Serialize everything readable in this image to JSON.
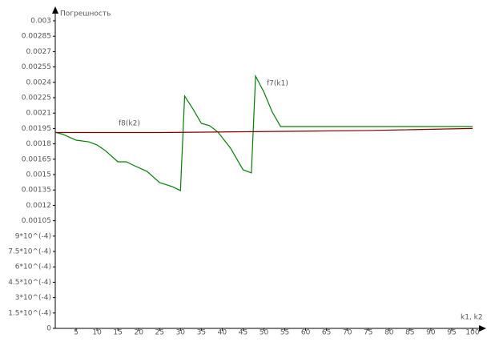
{
  "chart_data": {
    "type": "line",
    "y_label": "Погрешность",
    "x_label": "k1, k2",
    "xlim": [
      0,
      100
    ],
    "ylim": [
      0,
      0.003
    ],
    "xticks": [
      5,
      10,
      15,
      20,
      25,
      30,
      35,
      40,
      45,
      50,
      55,
      60,
      65,
      70,
      75,
      80,
      85,
      90,
      95,
      100
    ],
    "yticks": [
      0,
      {
        "value": 0.00015,
        "label": "1.5*10^(-4)"
      },
      {
        "value": 0.0003,
        "label": "3*10^(-4)"
      },
      {
        "value": 0.00045,
        "label": "4.5*10^(-4)"
      },
      {
        "value": 0.0006,
        "label": "6*10^(-4)"
      },
      {
        "value": 0.00075,
        "label": "7.5*10^(-4)"
      },
      {
        "value": 0.0009,
        "label": "9*10^(-4)"
      },
      0.00105,
      0.0012,
      0.00135,
      0.0015,
      0.00165,
      0.0018,
      0.00195,
      0.0021,
      0.00225,
      0.0024,
      0.00255,
      0.0027,
      0.00285,
      0.003
    ],
    "series": [
      {
        "name": "f7(k1)",
        "color": "#008000",
        "x": [
          0,
          2,
          5,
          8,
          10,
          12,
          15,
          17,
          19,
          22,
          25,
          28,
          30,
          31,
          33,
          35,
          37,
          39,
          42,
          45,
          47,
          48,
          50,
          52,
          54,
          100
        ],
        "values": [
          0.001914,
          0.00189,
          0.001836,
          0.00182,
          0.00179,
          0.001734,
          0.001625,
          0.001625,
          0.001586,
          0.001531,
          0.001422,
          0.001383,
          0.001344,
          0.002266,
          0.00214,
          0.002,
          0.001977,
          0.001914,
          0.001758,
          0.001547,
          0.001516,
          0.002461,
          0.002305,
          0.00211,
          0.001969,
          0.001969
        ]
      },
      {
        "name": "f8(k2)",
        "color": "#800000",
        "x": [
          0,
          25,
          50,
          75,
          100
        ],
        "values": [
          0.00191,
          0.00191,
          0.00192,
          0.00193,
          0.00195
        ]
      }
    ]
  }
}
